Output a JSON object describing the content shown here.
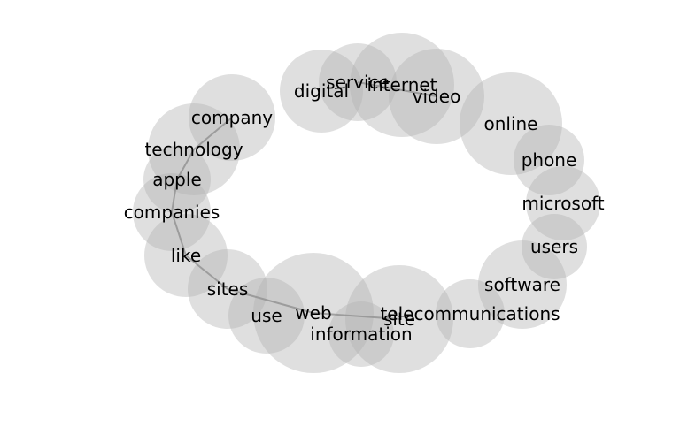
{
  "diagram": {
    "type": "word-bubble-network",
    "colors": {
      "bubble": "#b3b3b3",
      "edge": "#8c8c8c",
      "text": "#000000",
      "background": "#ffffff"
    },
    "nodes": [
      {
        "id": "company",
        "label": "company"
      },
      {
        "id": "technology",
        "label": "technology"
      },
      {
        "id": "apple",
        "label": "apple"
      },
      {
        "id": "companies",
        "label": "companies"
      },
      {
        "id": "like",
        "label": "like"
      },
      {
        "id": "sites",
        "label": "sites"
      },
      {
        "id": "use",
        "label": "use"
      },
      {
        "id": "web",
        "label": "web"
      },
      {
        "id": "information",
        "label": "information"
      },
      {
        "id": "site",
        "label": "site"
      },
      {
        "id": "telecommunications",
        "label": "telecommunications"
      },
      {
        "id": "software",
        "label": "software"
      },
      {
        "id": "users",
        "label": "users"
      },
      {
        "id": "microsoft",
        "label": "microsoft"
      },
      {
        "id": "phone",
        "label": "phone"
      },
      {
        "id": "online",
        "label": "online"
      },
      {
        "id": "video",
        "label": "video"
      },
      {
        "id": "internet",
        "label": "internet"
      },
      {
        "id": "service",
        "label": "service"
      },
      {
        "id": "digital",
        "label": "digital"
      }
    ],
    "edges": [
      [
        "company",
        "technology"
      ],
      [
        "technology",
        "apple"
      ],
      [
        "apple",
        "companies"
      ],
      [
        "companies",
        "like"
      ],
      [
        "like",
        "sites"
      ],
      [
        "sites",
        "web"
      ],
      [
        "web",
        "site"
      ],
      [
        "service",
        "video"
      ]
    ]
  }
}
